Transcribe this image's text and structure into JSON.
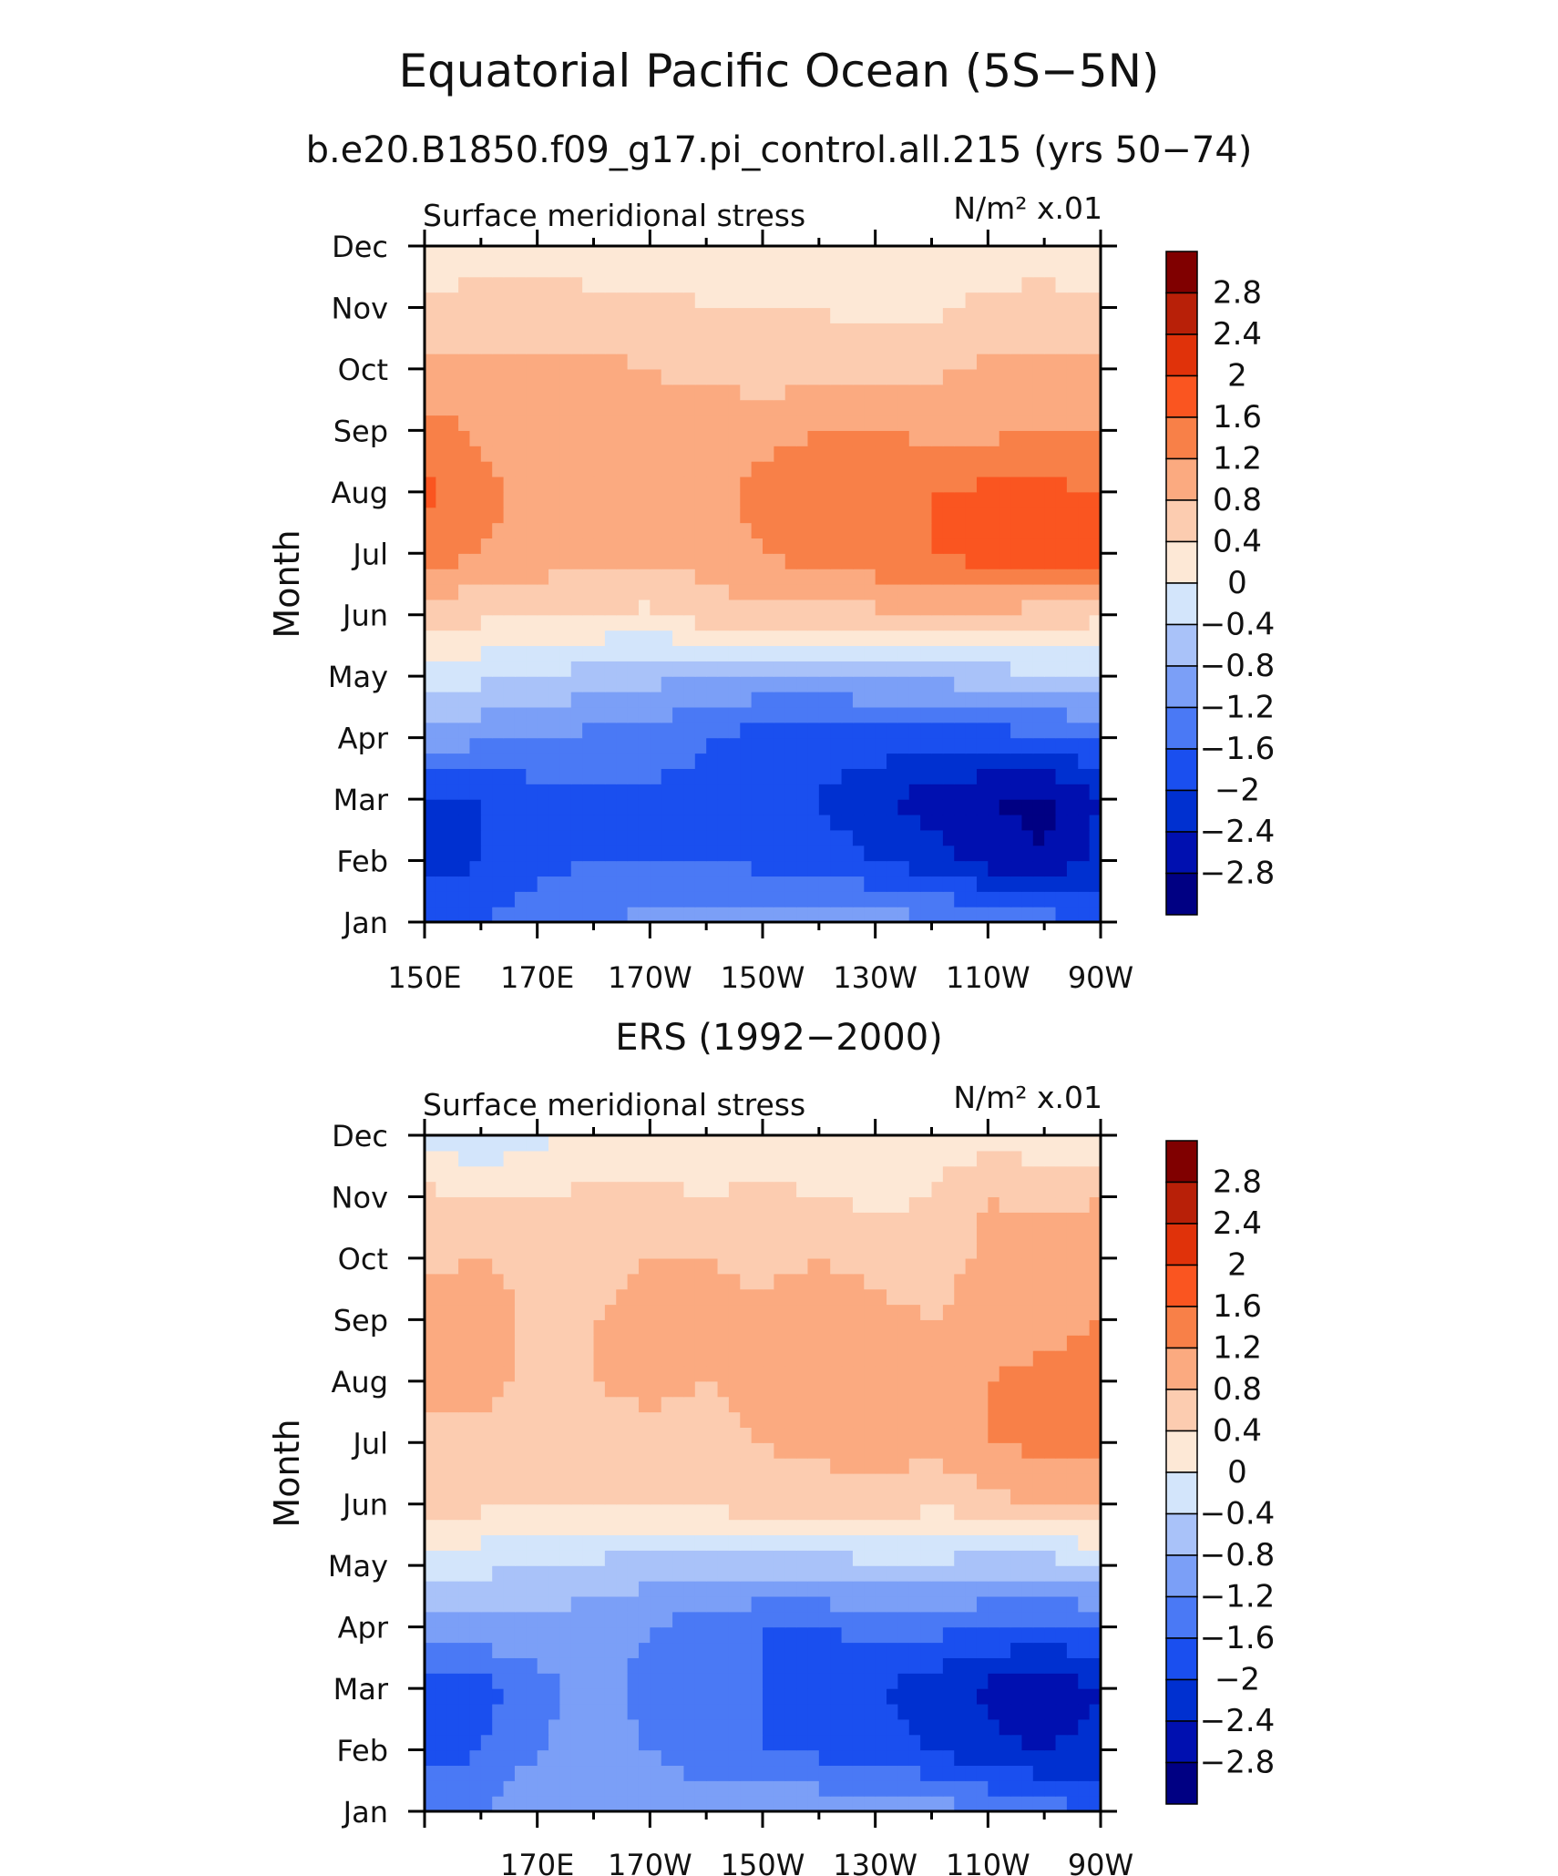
{
  "page": {
    "title": "Equatorial Pacific Ocean (5S−5N)"
  },
  "colorbar": {
    "levels": [
      -2.8,
      -2.4,
      -2,
      -1.6,
      -1.2,
      -0.8,
      -0.4,
      0,
      0.4,
      0.8,
      1.2,
      1.6,
      2,
      2.4,
      2.8
    ],
    "labels": [
      "2.8",
      "2.4",
      "2",
      "1.6",
      "1.2",
      "0.8",
      "0.4",
      "0",
      "−0.4",
      "−0.8",
      "−1.2",
      "−1.6",
      "−2",
      "−2.4",
      "−2.8"
    ],
    "colors": [
      "#000083",
      "#0010b0",
      "#0030d0",
      "#1a4fef",
      "#4a79f5",
      "#7b9ff7",
      "#a9c2f9",
      "#d3e5fb",
      "#fde8d6",
      "#fcccb0",
      "#fbaa80",
      "#f88048",
      "#fa5520",
      "#e0320a",
      "#b82008",
      "#800000"
    ]
  },
  "chart_data": [
    {
      "type": "heatmap",
      "title": "b.e20.B1850.f09_g17.pi_control.all.215 (yrs 50−74)",
      "left_label": "Surface meridional stress",
      "units_label": "N/m² x.01",
      "ylabel": "Month",
      "x_ticks": [
        "150E",
        "170E",
        "170W",
        "150W",
        "130W",
        "110W",
        "90W"
      ],
      "x_range": [
        150,
        270
      ],
      "y_ticks": [
        "Jan",
        "Feb",
        "Mar",
        "Apr",
        "May",
        "Jun",
        "Jul",
        "Aug",
        "Sep",
        "Oct",
        "Nov",
        "Dec"
      ],
      "lon": [
        150,
        160,
        170,
        180,
        190,
        200,
        210,
        220,
        230,
        240,
        250,
        260,
        270
      ],
      "values": [
        [
          -1.6,
          -1.6,
          -1.4,
          -1.2,
          -1.1,
          -1.0,
          -1.0,
          -1.0,
          -1.0,
          -1.1,
          -1.2,
          -1.4,
          -1.6
        ],
        [
          -2.2,
          -2.0,
          -1.7,
          -1.6,
          -1.6,
          -1.6,
          -1.7,
          -1.8,
          -2.0,
          -2.2,
          -2.6,
          -2.8,
          -2.2
        ],
        [
          -2.1,
          -2.0,
          -1.8,
          -1.7,
          -1.7,
          -1.7,
          -1.8,
          -2.0,
          -2.3,
          -2.6,
          -2.8,
          -2.9,
          -2.4
        ],
        [
          -1.0,
          -1.1,
          -1.2,
          -1.3,
          -1.4,
          -1.6,
          -1.8,
          -1.8,
          -1.8,
          -1.8,
          -1.8,
          -1.7,
          -1.6
        ],
        [
          -0.2,
          -0.3,
          -0.4,
          -0.6,
          -0.7,
          -0.8,
          -0.9,
          -0.9,
          -0.8,
          -0.7,
          -0.6,
          -0.5,
          -0.4
        ],
        [
          0.5,
          0.5,
          0.5,
          0.4,
          0.3,
          0.6,
          0.7,
          0.7,
          0.7,
          0.7,
          0.7,
          0.6,
          0.5
        ],
        [
          1.5,
          1.2,
          1.0,
          0.9,
          0.9,
          1.0,
          1.2,
          1.4,
          1.5,
          1.6,
          1.8,
          1.9,
          1.8
        ],
        [
          1.7,
          1.3,
          1.1,
          1.0,
          1.0,
          1.1,
          1.3,
          1.4,
          1.5,
          1.6,
          1.7,
          1.7,
          1.6
        ],
        [
          1.4,
          1.1,
          1.0,
          0.9,
          0.9,
          1.0,
          1.1,
          1.2,
          1.2,
          1.1,
          1.1,
          1.2,
          1.2
        ],
        [
          0.9,
          0.9,
          0.9,
          0.9,
          0.8,
          0.7,
          0.6,
          0.6,
          0.6,
          0.7,
          0.9,
          0.9,
          0.9
        ],
        [
          0.6,
          0.6,
          0.6,
          0.5,
          0.5,
          0.4,
          0.4,
          0.4,
          0.3,
          0.3,
          0.5,
          0.6,
          0.6
        ],
        [
          -0.1,
          0.2,
          0.2,
          0.2,
          0.2,
          0.2,
          0.1,
          0.1,
          0.1,
          0.1,
          0.2,
          0.1,
          -0.1
        ]
      ]
    },
    {
      "type": "heatmap",
      "title": "ERS (1992−2000)",
      "left_label": "Surface meridional stress",
      "units_label": "N/m² x.01",
      "ylabel": "Month",
      "x_ticks": [
        "170E",
        "170W",
        "150W",
        "130W",
        "110W",
        "90W"
      ],
      "x_range": [
        150,
        270
      ],
      "y_ticks": [
        "Jan",
        "Feb",
        "Mar",
        "Apr",
        "May",
        "Jun",
        "Jul",
        "Aug",
        "Sep",
        "Oct",
        "Nov",
        "Dec"
      ],
      "lon": [
        150,
        160,
        170,
        180,
        190,
        200,
        210,
        220,
        230,
        240,
        250,
        260,
        270
      ],
      "values": [
        [
          -1.3,
          -1.2,
          -0.9,
          -0.8,
          -0.9,
          -1.0,
          -0.9,
          -0.9,
          -0.9,
          -1.0,
          -1.2,
          -1.4,
          -1.6
        ],
        [
          -1.8,
          -1.6,
          -1.2,
          -1.1,
          -1.2,
          -1.4,
          -1.6,
          -1.7,
          -1.8,
          -2.0,
          -2.3,
          -2.4,
          -2.3
        ],
        [
          -2.0,
          -1.8,
          -1.3,
          -1.1,
          -1.3,
          -1.5,
          -1.6,
          -1.8,
          -2.0,
          -2.2,
          -2.5,
          -2.7,
          -2.4
        ],
        [
          -0.9,
          -0.9,
          -1.0,
          -1.0,
          -1.2,
          -1.4,
          -1.6,
          -1.6,
          -1.5,
          -1.5,
          -1.6,
          -1.7,
          -1.5
        ],
        [
          -0.3,
          -0.3,
          -0.4,
          -0.5,
          -0.6,
          -0.7,
          -0.6,
          -0.6,
          -0.5,
          -0.5,
          -0.6,
          -0.6,
          -0.5
        ],
        [
          0.6,
          0.5,
          0.5,
          0.5,
          0.4,
          0.5,
          0.6,
          0.6,
          0.6,
          0.5,
          0.6,
          0.9,
          0.9
        ],
        [
          0.7,
          0.7,
          0.6,
          0.6,
          0.7,
          0.6,
          0.8,
          0.9,
          1.0,
          0.9,
          1.2,
          1.3,
          1.3
        ],
        [
          0.9,
          0.9,
          0.7,
          0.8,
          0.9,
          0.8,
          1.0,
          1.0,
          1.0,
          0.9,
          1.2,
          1.3,
          1.3
        ],
        [
          1.2,
          1.0,
          0.7,
          0.8,
          0.9,
          0.9,
          0.9,
          1.0,
          0.9,
          0.8,
          1.0,
          1.1,
          1.2
        ],
        [
          0.7,
          0.8,
          0.7,
          0.7,
          0.8,
          0.8,
          0.7,
          0.8,
          0.7,
          0.6,
          0.9,
          1.0,
          1.0
        ],
        [
          0.5,
          0.4,
          0.4,
          0.5,
          0.5,
          0.4,
          0.5,
          0.4,
          0.3,
          0.4,
          0.8,
          0.7,
          0.8
        ],
        [
          -0.2,
          -0.3,
          -0.1,
          0.1,
          0.1,
          0.1,
          0.2,
          0.1,
          0.2,
          0.2,
          0.2,
          0.2,
          0.1
        ]
      ]
    }
  ]
}
